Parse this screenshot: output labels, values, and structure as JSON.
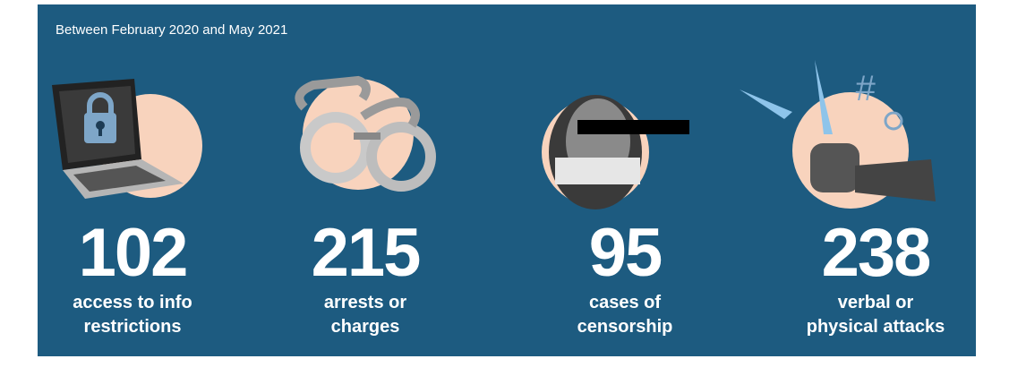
{
  "header": {
    "subtitle": "Between February 2020 and May 2021"
  },
  "stats": [
    {
      "number": 102,
      "label_lines": [
        "access to info",
        "restrictions"
      ]
    },
    {
      "number": 215,
      "label_lines": [
        "arrests or",
        "charges"
      ]
    },
    {
      "number": 95,
      "label_lines": [
        "cases of",
        "censorship"
      ]
    },
    {
      "number": 238,
      "label_lines": [
        "verbal or",
        "physical attacks"
      ]
    }
  ]
}
